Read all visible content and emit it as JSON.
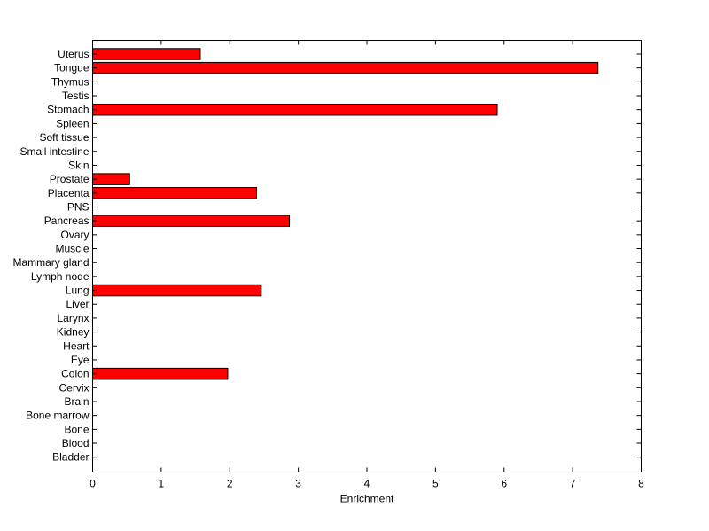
{
  "chart_data": {
    "type": "bar",
    "orientation": "horizontal",
    "title": "",
    "xlabel": "Enrichment",
    "ylabel": "",
    "xlim": [
      0,
      8
    ],
    "xticks": [
      0,
      1,
      2,
      3,
      4,
      5,
      6,
      7,
      8
    ],
    "grid": false,
    "legend": "none",
    "bar_color": "#ff0000",
    "bar_edge_color": "#000000",
    "categories": [
      "Uterus",
      "Tongue",
      "Thymus",
      "Testis",
      "Stomach",
      "Spleen",
      "Soft tissue",
      "Small intestine",
      "Skin",
      "Prostate",
      "Placenta",
      "PNS",
      "Pancreas",
      "Ovary",
      "Muscle",
      "Mammary gland",
      "Lymph node",
      "Lung",
      "Liver",
      "Larynx",
      "Kidney",
      "Heart",
      "Eye",
      "Colon",
      "Cervix",
      "Brain",
      "Bone marrow",
      "Bone",
      "Blood",
      "Bladder"
    ],
    "values": [
      1.57,
      7.37,
      0,
      0,
      5.9,
      0,
      0,
      0,
      0,
      0.54,
      2.39,
      0,
      2.87,
      0,
      0,
      0,
      0,
      2.46,
      0,
      0,
      0,
      0,
      0,
      1.97,
      0,
      0,
      0,
      0,
      0,
      0
    ]
  }
}
